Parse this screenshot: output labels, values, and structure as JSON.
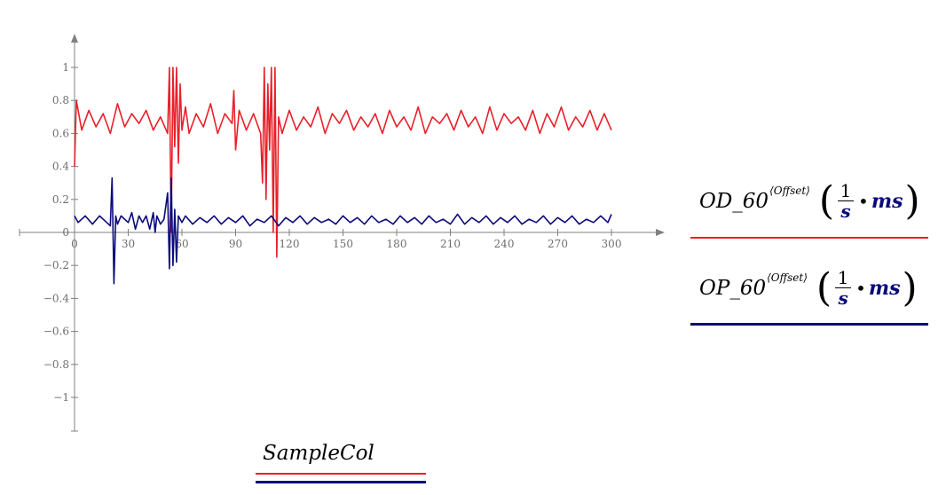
{
  "chart_data": {
    "type": "line",
    "xlabel": "SampleCol",
    "xlim": [
      0,
      300
    ],
    "ylim": [
      -1,
      1
    ],
    "x_ticks": [
      0,
      30,
      60,
      90,
      120,
      150,
      180,
      210,
      240,
      270,
      300
    ],
    "y_ticks": [
      1,
      0.8,
      0.6,
      0.4,
      0.2,
      0,
      -0.2,
      -0.4,
      -0.6,
      -0.8,
      -1
    ],
    "x_tick_labels": [
      "0",
      "30",
      "60",
      "90",
      "120",
      "150",
      "180",
      "210",
      "240",
      "270",
      "300"
    ],
    "y_tick_labels": [
      "1",
      "0.8",
      "0.6",
      "0.4",
      "0.2",
      "0",
      "−0.2",
      "−0.4",
      "−0.6",
      "−0.8",
      "−1"
    ],
    "grid": false,
    "legend_position": "right",
    "series": [
      {
        "name": "OD_60",
        "color": "#e8202a",
        "x": [
          0,
          1,
          4,
          8,
          12,
          16,
          20,
          24,
          28,
          32,
          36,
          40,
          44,
          48,
          52,
          53,
          54,
          55,
          56,
          57,
          58,
          59,
          60,
          62,
          64,
          68,
          72,
          76,
          80,
          84,
          88,
          89,
          90,
          92,
          96,
          100,
          104,
          105,
          106,
          107,
          108,
          109,
          110,
          111,
          112,
          113,
          114,
          116,
          120,
          124,
          128,
          132,
          136,
          140,
          144,
          148,
          152,
          156,
          160,
          164,
          168,
          172,
          176,
          180,
          184,
          188,
          192,
          196,
          200,
          204,
          208,
          212,
          216,
          220,
          224,
          228,
          232,
          236,
          240,
          244,
          248,
          252,
          256,
          260,
          264,
          268,
          272,
          276,
          280,
          284,
          288,
          292,
          296,
          300
        ],
        "values": [
          0.4,
          0.8,
          0.62,
          0.74,
          0.64,
          0.72,
          0.6,
          0.78,
          0.64,
          0.72,
          0.66,
          0.74,
          0.62,
          0.7,
          0.6,
          1.0,
          0.0,
          1.0,
          0.52,
          1.0,
          0.42,
          0.9,
          0.62,
          0.76,
          0.6,
          0.72,
          0.64,
          0.78,
          0.6,
          0.72,
          0.66,
          0.86,
          0.5,
          0.74,
          0.62,
          0.72,
          0.6,
          0.3,
          1.0,
          0.2,
          0.9,
          0.5,
          1.0,
          0.0,
          1.0,
          -0.15,
          0.7,
          0.6,
          0.74,
          0.62,
          0.7,
          0.64,
          0.76,
          0.6,
          0.72,
          0.66,
          0.74,
          0.62,
          0.7,
          0.64,
          0.72,
          0.6,
          0.74,
          0.64,
          0.7,
          0.62,
          0.76,
          0.6,
          0.7,
          0.66,
          0.72,
          0.62,
          0.74,
          0.64,
          0.7,
          0.6,
          0.76,
          0.62,
          0.72,
          0.66,
          0.7,
          0.62,
          0.74,
          0.6,
          0.72,
          0.64,
          0.76,
          0.62,
          0.7,
          0.64,
          0.74,
          0.62,
          0.72,
          0.62
        ]
      },
      {
        "name": "OP_60",
        "color": "#0a0a7a",
        "x": [
          0,
          2,
          6,
          10,
          14,
          18,
          20,
          21,
          22,
          23,
          24,
          26,
          30,
          32,
          34,
          36,
          38,
          40,
          42,
          44,
          45,
          46,
          48,
          50,
          52,
          53,
          54,
          55,
          56,
          57,
          58,
          60,
          62,
          66,
          70,
          74,
          78,
          82,
          86,
          90,
          94,
          98,
          102,
          106,
          110,
          114,
          118,
          122,
          126,
          130,
          134,
          138,
          142,
          146,
          150,
          154,
          158,
          162,
          166,
          170,
          174,
          178,
          182,
          186,
          190,
          194,
          198,
          202,
          206,
          210,
          214,
          218,
          222,
          226,
          230,
          234,
          238,
          242,
          246,
          250,
          254,
          258,
          262,
          266,
          270,
          274,
          278,
          282,
          286,
          290,
          294,
          298,
          300
        ],
        "values": [
          0.1,
          0.06,
          0.1,
          0.05,
          0.1,
          0.06,
          0.04,
          0.33,
          -0.31,
          0.1,
          0.05,
          0.1,
          0.06,
          0.12,
          0.02,
          0.1,
          0.06,
          0.1,
          0.02,
          0.12,
          0.0,
          0.1,
          0.05,
          0.08,
          0.24,
          -0.22,
          0.33,
          -0.2,
          0.14,
          -0.18,
          0.1,
          0.06,
          0.1,
          0.05,
          0.09,
          0.06,
          0.1,
          0.05,
          0.09,
          0.06,
          0.1,
          0.04,
          0.08,
          0.06,
          0.1,
          0.04,
          0.09,
          0.06,
          0.1,
          0.05,
          0.09,
          0.06,
          0.08,
          0.05,
          0.1,
          0.06,
          0.09,
          0.05,
          0.1,
          0.06,
          0.08,
          0.05,
          0.1,
          0.06,
          0.09,
          0.05,
          0.1,
          0.06,
          0.08,
          0.05,
          0.11,
          0.05,
          0.09,
          0.06,
          0.1,
          0.05,
          0.09,
          0.06,
          0.1,
          0.05,
          0.08,
          0.06,
          0.1,
          0.05,
          0.09,
          0.06,
          0.1,
          0.05,
          0.08,
          0.06,
          0.1,
          0.06,
          0.11
        ]
      }
    ]
  },
  "legend": {
    "entries": [
      {
        "var": "OD_60",
        "superscript": "⟨Offset⟩",
        "num": "1",
        "den": "s",
        "dot": "•",
        "unit": "ms",
        "paren_open": "(",
        "paren_close": ")",
        "color": "#e8202a"
      },
      {
        "var": "OP_60",
        "superscript": "⟨Offset⟩",
        "num": "1",
        "den": "s",
        "dot": "•",
        "unit": "ms",
        "paren_open": "(",
        "paren_close": ")",
        "color": "#0a0a7a"
      }
    ]
  },
  "colors": {
    "axis": "#808080",
    "od_series": "#e8202a",
    "op_series": "#0a0a7a",
    "op_unit_text": "#0a0a7a"
  }
}
